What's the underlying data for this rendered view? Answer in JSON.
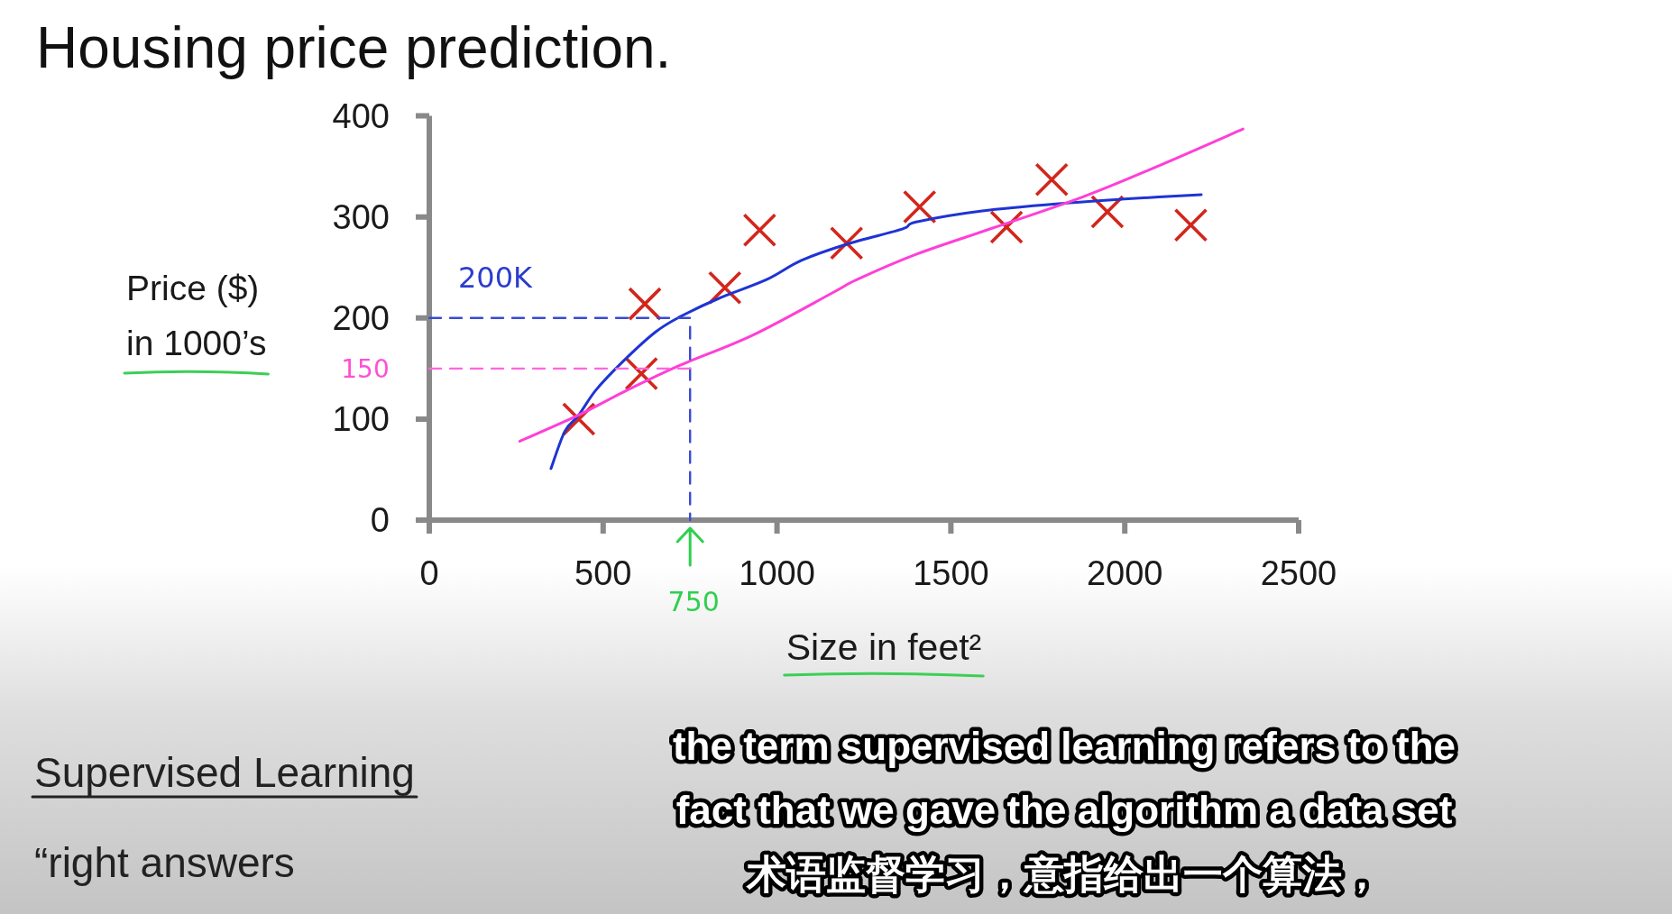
{
  "chart_data": {
    "type": "scatter",
    "title": "Housing price prediction.",
    "xlabel": "Size in feet²",
    "ylabel": "Price ($)\nin 1000’s",
    "xlim": [
      0,
      2500
    ],
    "ylim": [
      0,
      400
    ],
    "xticks": [
      0,
      500,
      1000,
      1500,
      2000,
      2500
    ],
    "yticks": [
      0,
      100,
      200,
      300,
      400
    ],
    "series": [
      {
        "type": "scatter",
        "marker": "cross",
        "color": "#d2261c",
        "x": [
          430,
          620,
          610,
          850,
          950,
          1200,
          1410,
          1660,
          1790,
          1950,
          2190
        ],
        "values": [
          100,
          214,
          145,
          230,
          287,
          274,
          310,
          290,
          337,
          305,
          292
        ]
      },
      {
        "type": "line",
        "color": "#1e34d4",
        "x": [
          350,
          390,
          430,
          480,
          560,
          650,
          720,
          830,
          970,
          1070,
          1200,
          1360,
          1400,
          1590,
          1840,
          2010,
          2220
        ],
        "values": [
          51,
          88,
          104,
          129,
          158,
          186,
          201,
          219,
          238,
          257,
          273,
          288,
          295,
          306,
          314,
          318,
          322
        ]
      },
      {
        "type": "line",
        "color": "#ff3fd6",
        "x": [
          260,
          430,
          560,
          720,
          930,
          1160,
          1230,
          1400,
          1620,
          1880,
          2100,
          2340
        ],
        "values": [
          78,
          104,
          127,
          153,
          183,
          225,
          238,
          263,
          289,
          320,
          351,
          387
        ]
      },
      {
        "type": "line",
        "color": "#3a4bd2",
        "line_style": "dashed",
        "x": [
          0,
          750,
          750
        ],
        "values": [
          200,
          200,
          0
        ]
      },
      {
        "type": "line",
        "color": "#ff66dd",
        "line_style": "dashed",
        "x": [
          0,
          750
        ],
        "values": [
          150,
          150
        ]
      }
    ],
    "annotations": [
      "200K",
      "150",
      {
        "text": "750",
        "x": 750
      },
      "Supervised Learning",
      "“right answers",
      "the term supervised learning refers to the",
      "fact that we gave the algorithm a data set",
      "术语监督学习，意指给出一个算法，"
    ]
  }
}
